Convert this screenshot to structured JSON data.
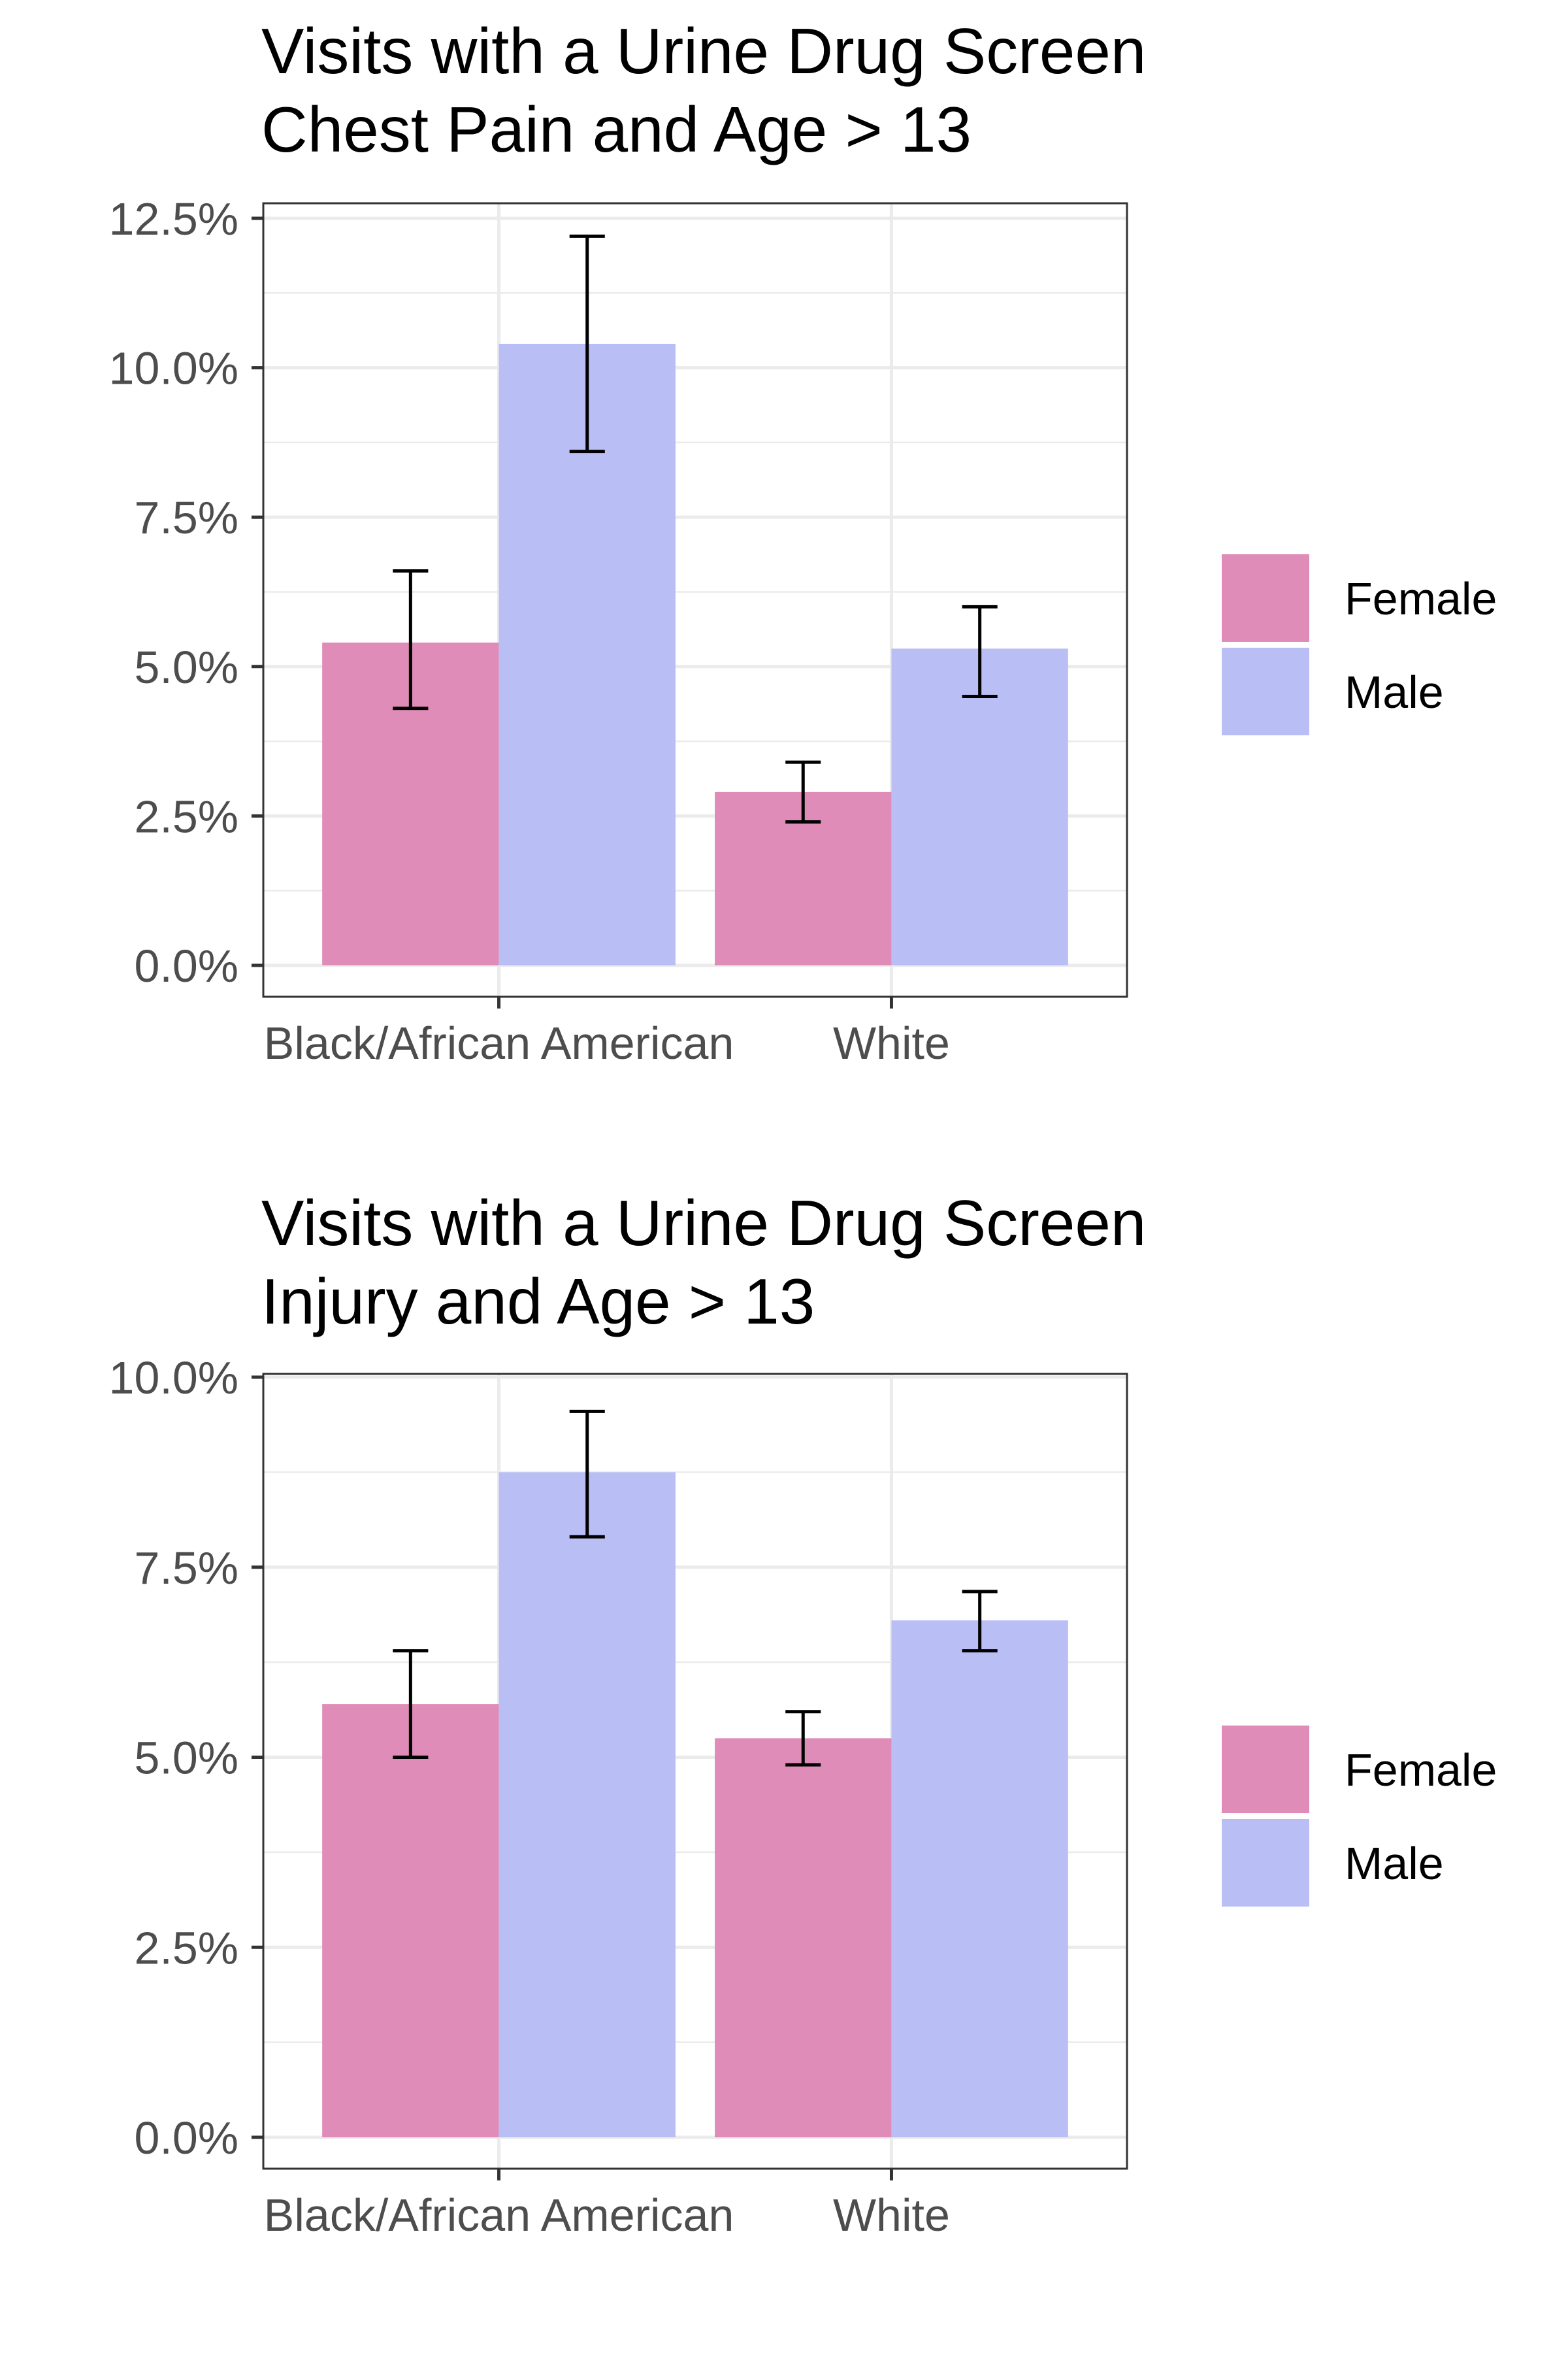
{
  "chart_data": [
    {
      "type": "bar",
      "title": "Visits with a Urine Drug Screen",
      "subtitle": "Chest Pain and Age > 13",
      "xlabel": "",
      "ylabel": "",
      "categories": [
        "Black/African American",
        "White"
      ],
      "ylim": [
        0,
        0.125
      ],
      "yticks": [
        0,
        0.025,
        0.05,
        0.075,
        0.1,
        0.125
      ],
      "ytick_labels": [
        "0.0%",
        "2.5%",
        "5.0%",
        "7.5%",
        "10.0%",
        "12.5%"
      ],
      "grid": true,
      "legend_position": "right",
      "series": [
        {
          "name": "Female",
          "color": "#df8db8",
          "values": [
            0.054,
            0.029
          ],
          "error_low": [
            0.043,
            0.024
          ],
          "error_high": [
            0.066,
            0.034
          ]
        },
        {
          "name": "Male",
          "color": "#b9bff5",
          "values": [
            0.104,
            0.053
          ],
          "error_low": [
            0.086,
            0.045
          ],
          "error_high": [
            0.122,
            0.06
          ]
        }
      ]
    },
    {
      "type": "bar",
      "title": "Visits with a Urine Drug Screen",
      "subtitle": "Injury and Age > 13",
      "xlabel": "",
      "ylabel": "",
      "categories": [
        "Black/African American",
        "White"
      ],
      "ylim": [
        0,
        0.1
      ],
      "yticks": [
        0,
        0.025,
        0.05,
        0.075,
        0.1
      ],
      "ytick_labels": [
        "0.0%",
        "2.5%",
        "5.0%",
        "7.5%",
        "10.0%"
      ],
      "grid": true,
      "legend_position": "right",
      "series": [
        {
          "name": "Female",
          "color": "#df8db8",
          "values": [
            0.057,
            0.0525
          ],
          "error_low": [
            0.05,
            0.049
          ],
          "error_high": [
            0.064,
            0.056
          ]
        },
        {
          "name": "Male",
          "color": "#b9bff5",
          "values": [
            0.0875,
            0.068
          ],
          "error_low": [
            0.079,
            0.064
          ],
          "error_high": [
            0.0955,
            0.0718
          ]
        }
      ]
    }
  ]
}
